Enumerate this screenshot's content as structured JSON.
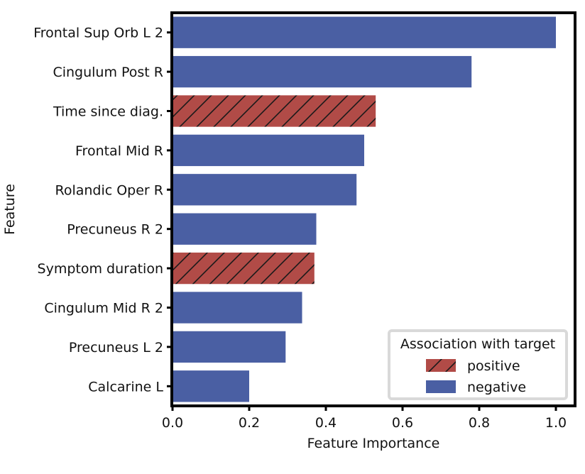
{
  "chart_data": {
    "type": "bar",
    "orientation": "horizontal",
    "xlabel": "Feature Importance",
    "ylabel": "Feature",
    "xlim": [
      0,
      1.05
    ],
    "xticks": [
      "0.0",
      "0.2",
      "0.4",
      "0.6",
      "0.8",
      "1.0"
    ],
    "grid": false,
    "legend": {
      "title": "Association with target",
      "placement": "bottom-right",
      "entries": [
        {
          "label": "positive",
          "color": "#b14b47",
          "hatch": true
        },
        {
          "label": "negative",
          "color": "#4a5fa3",
          "hatch": false
        }
      ]
    },
    "categories": [
      "Frontal Sup Orb L 2",
      "Cingulum Post R",
      "Time since diag.",
      "Frontal Mid R",
      "Rolandic Oper R",
      "Precuneus R 2",
      "Symptom duration",
      "Cingulum Mid R 2",
      "Precuneus L 2",
      "Calcarine L"
    ],
    "values": [
      1.0,
      0.78,
      0.53,
      0.5,
      0.48,
      0.375,
      0.37,
      0.338,
      0.295,
      0.2
    ],
    "association": [
      "negative",
      "negative",
      "positive",
      "negative",
      "negative",
      "negative",
      "positive",
      "negative",
      "negative",
      "negative"
    ]
  }
}
